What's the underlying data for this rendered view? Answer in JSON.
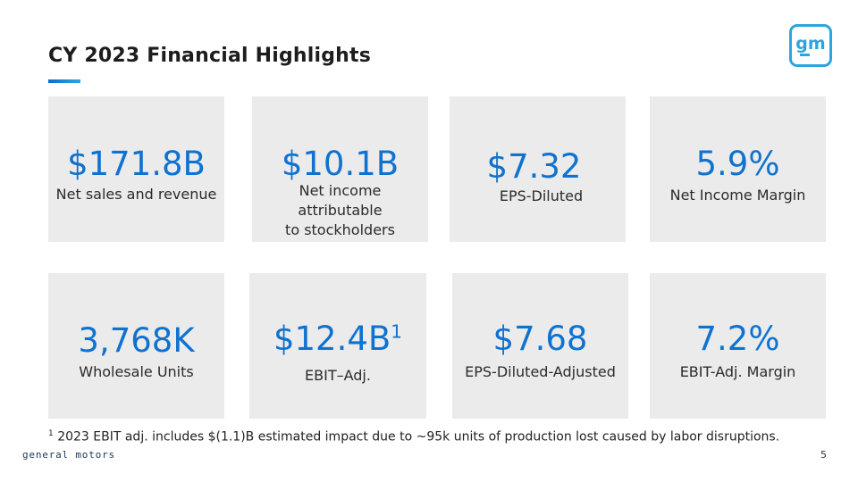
{
  "slide": {
    "title": "CY 2023 Financial Highlights",
    "brand": "general motors",
    "page_number": "5",
    "logo_text": "gm",
    "accent_color": "#0f72d0",
    "card_color": "#ebebeb"
  },
  "metrics": [
    {
      "value": "$171.8B",
      "label": "Net sales and revenue"
    },
    {
      "value": "$10.1B",
      "label_lines": [
        "Net income",
        "attributable",
        "to stockholders"
      ]
    },
    {
      "value": "$7.32",
      "label": "EPS-Diluted"
    },
    {
      "value": "5.9%",
      "label": "Net Income Margin"
    },
    {
      "value": "3,768K",
      "label": "Wholesale Units"
    },
    {
      "value": "$12.4B",
      "footnote_ref": "1",
      "label": "EBIT–Adj."
    },
    {
      "value": "$7.68",
      "label": "EPS-Diluted-Adjusted"
    },
    {
      "value": "7.2%",
      "label": "EBIT-Adj. Margin"
    }
  ],
  "footnote": {
    "marker": "1",
    "text": "2023 EBIT adj. includes $(1.1)B estimated impact due to ~95k units of production lost caused by labor disruptions."
  }
}
